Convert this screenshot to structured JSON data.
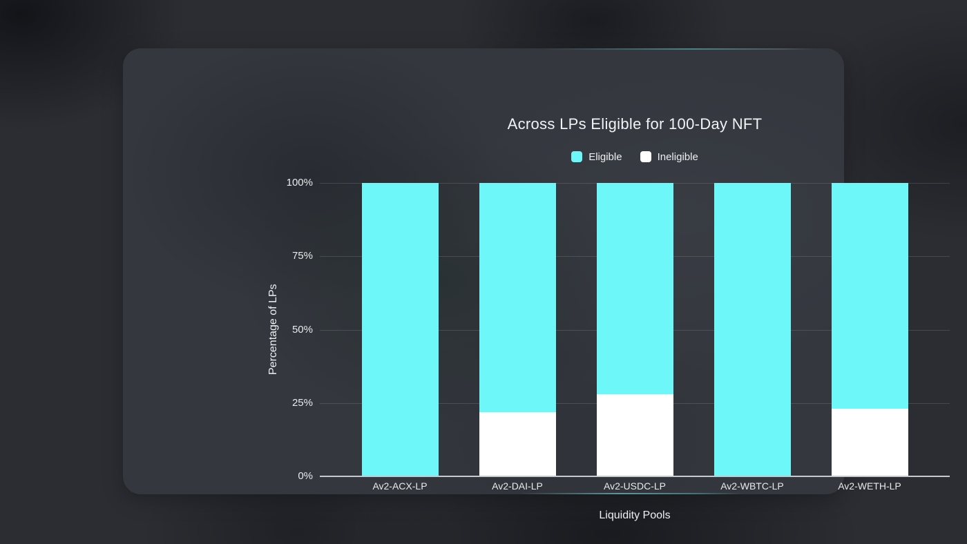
{
  "theme": {
    "page_background": "#2B2D32",
    "card_background": "#34373E",
    "text_color": "#EEF0F2",
    "grid_color": "rgba(255,255,255,0.13)",
    "axis_line_color": "#C6CBD1",
    "accent_glow": "#6DF7F8"
  },
  "chart_data": {
    "type": "bar",
    "stacked": true,
    "title": "Across LPs Eligible for 100-Day NFT",
    "xlabel": "Liquidity Pools",
    "ylabel": "Percentage of LPs",
    "categories": [
      "Av2-ACX-LP",
      "Av2-DAI-LP",
      "Av2-USDC-LP",
      "Av2-WBTC-LP",
      "Av2-WETH-LP"
    ],
    "series": [
      {
        "name": "Eligible",
        "color": "#6DF7F8",
        "values": [
          100,
          78,
          72,
          100,
          77
        ]
      },
      {
        "name": "Ineligible",
        "color": "#FFFFFF",
        "values": [
          0,
          22,
          28,
          0,
          23
        ]
      }
    ],
    "ylim": [
      0,
      100
    ],
    "yticks": [
      {
        "value": 0,
        "label": "0%"
      },
      {
        "value": 25,
        "label": "25%"
      },
      {
        "value": 50,
        "label": "50%"
      },
      {
        "value": 75,
        "label": "75%"
      },
      {
        "value": 100,
        "label": "100%"
      }
    ],
    "grid": true,
    "legend_position": "top"
  }
}
